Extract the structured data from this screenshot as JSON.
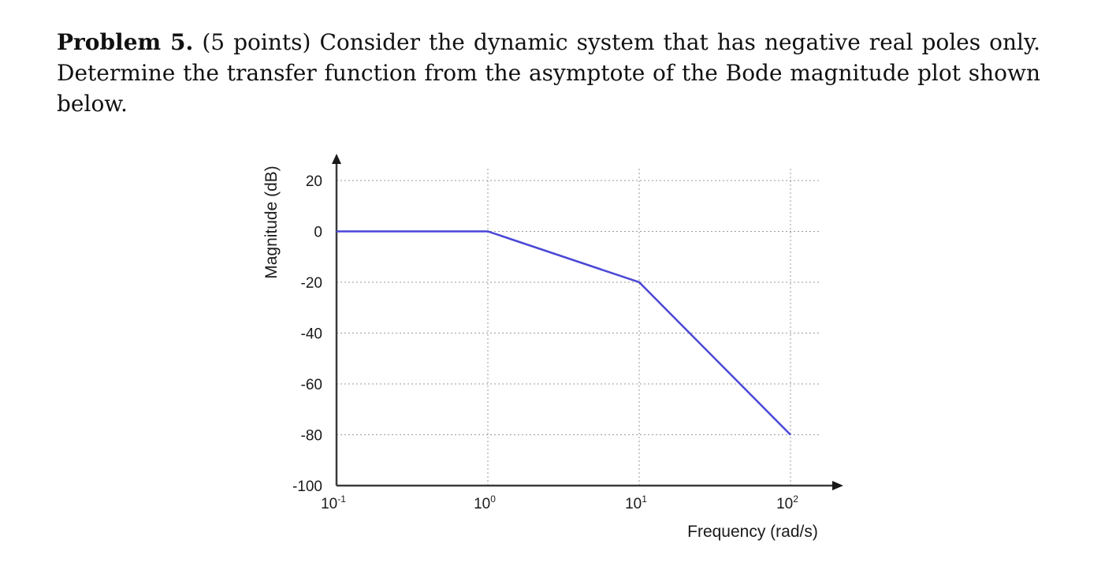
{
  "problem": {
    "heading": "Problem 5.",
    "points": "(5 points)",
    "text": "Consider the dynamic system that has negative real poles only. Determine the transfer function from the asymptote of the Bode magnitude plot shown below."
  },
  "colors": {
    "series": "#4a47d6",
    "axis": "#3a3a3a",
    "grid": "#9a9a9a"
  },
  "chart_data": {
    "type": "line",
    "title": "",
    "xlabel": "Frequency (rad/s)",
    "ylabel": "Magnitude (dB)",
    "xscale": "log",
    "xlim": [
      0.1,
      100
    ],
    "ylim": [
      -100,
      20
    ],
    "xticks": [
      0.1,
      1,
      10,
      100
    ],
    "xtick_labels": [
      {
        "base": "10",
        "exp": "-1"
      },
      {
        "base": "10",
        "exp": "0"
      },
      {
        "base": "10",
        "exp": "1"
      },
      {
        "base": "10",
        "exp": "2"
      }
    ],
    "yticks": [
      20,
      0,
      -20,
      -40,
      -60,
      -80,
      -100
    ],
    "ytick_labels": [
      "20",
      "0",
      "-20",
      "-40",
      "-60",
      "-80",
      "-100"
    ],
    "grid": true,
    "legend": false,
    "series": [
      {
        "x": [
          0.1,
          1,
          10,
          100
        ],
        "y": [
          0,
          0,
          -20,
          -80
        ]
      }
    ]
  }
}
